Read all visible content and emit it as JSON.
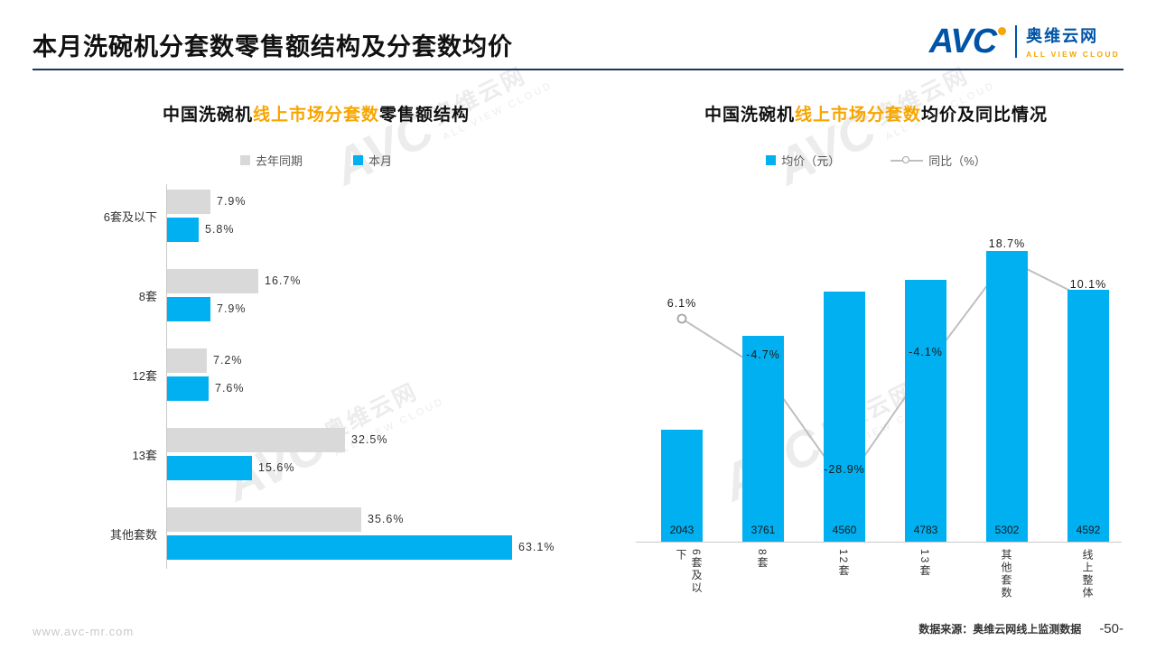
{
  "page": {
    "title": "本月洗碗机分套数零售额结构及分套数均价",
    "source": "数据来源：奥维云网线上监测数据",
    "page_number": "-50-",
    "site": "www.avc-mr.com"
  },
  "logo": {
    "brand": "AVC",
    "cn": "奥维云网",
    "en": "ALL VIEW CLOUD"
  },
  "watermark": {
    "brand": "AVC",
    "cn": "奥维云网",
    "en": "ALL VIEW CLOUD"
  },
  "colors": {
    "accent_blue": "#00b0f0",
    "gray_bar": "#d9d9d9",
    "line_gray": "#bfbfbf",
    "orange": "#f7a600",
    "rule_navy": "#17375e"
  },
  "chart_data": [
    {
      "type": "bar",
      "orientation": "horizontal",
      "title_black1": "中国洗碗机",
      "title_orange": "线上市场分套数",
      "title_black2": "零售额结构",
      "categories": [
        "6套及以下",
        "8套",
        "12套",
        "13套",
        "其他套数"
      ],
      "series": [
        {
          "name": "去年同期",
          "color": "#d9d9d9",
          "values": [
            7.9,
            16.7,
            7.2,
            32.5,
            35.6
          ]
        },
        {
          "name": "本月",
          "color": "#00b0f0",
          "values": [
            5.8,
            7.9,
            7.6,
            15.6,
            63.1
          ]
        }
      ],
      "value_suffix": "%",
      "xlim": [
        0,
        70
      ],
      "legend_position": "top",
      "grid": false
    },
    {
      "type": "bar+line",
      "title_black1": "中国洗碗机",
      "title_orange": "线上市场分套数",
      "title_black2": "均价及同比情况",
      "categories": [
        "6套及以下",
        "8套",
        "12套",
        "13套",
        "其他套数",
        "线上整体"
      ],
      "bar_series": {
        "name": "均价（元）",
        "color": "#00b0f0",
        "values": [
          2043,
          3761,
          4560,
          4783,
          5302,
          4592
        ]
      },
      "line_series": {
        "name": "同比（%）",
        "color": "#bfbfbf",
        "marker": "circle",
        "values": [
          6.1,
          -4.7,
          -28.9,
          -4.1,
          18.7,
          10.1
        ],
        "value_suffix": "%"
      },
      "bar_ylim": [
        0,
        5800
      ],
      "line_ylim": [
        -40,
        30
      ],
      "legend_position": "top",
      "grid": false
    }
  ]
}
